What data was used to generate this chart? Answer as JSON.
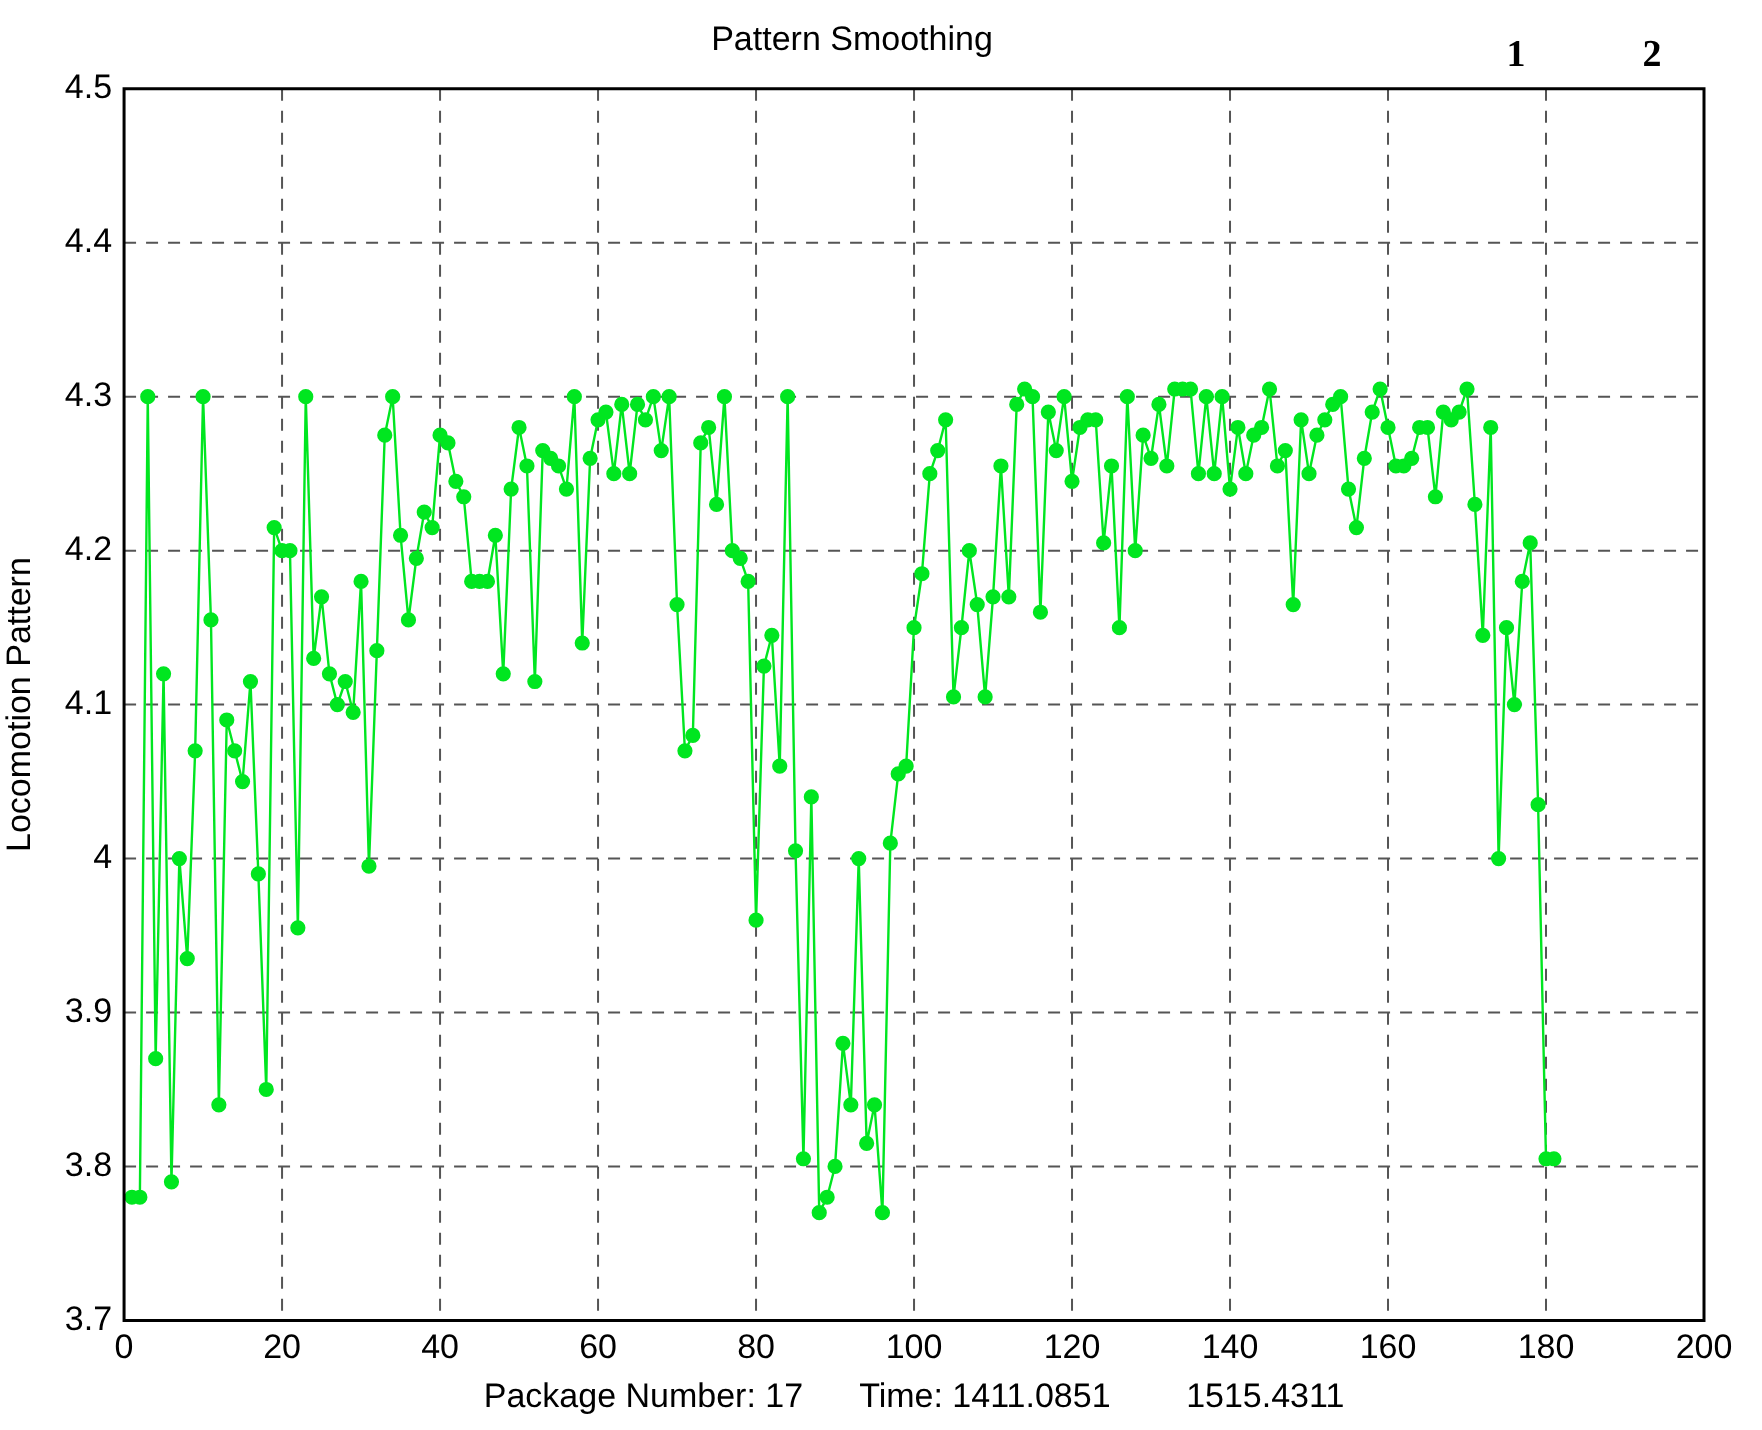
{
  "chart_data": {
    "type": "line",
    "title": "Pattern Smoothing",
    "xlabel": "Package Number: 17      Time: 1411.0851        1515.4311",
    "ylabel": "Locomotion Pattern",
    "annotations": [
      "1",
      "2"
    ],
    "x": [
      1,
      2,
      3,
      4,
      5,
      6,
      7,
      8,
      9,
      10,
      11,
      12,
      13,
      14,
      15,
      16,
      17,
      18,
      19,
      20,
      21,
      22,
      23,
      24,
      25,
      26,
      27,
      28,
      29,
      30,
      31,
      32,
      33,
      34,
      35,
      36,
      37,
      38,
      39,
      40,
      41,
      42,
      43,
      44,
      45,
      46,
      47,
      48,
      49,
      50,
      51,
      52,
      53,
      54,
      55,
      56,
      57,
      58,
      59,
      60,
      61,
      62,
      63,
      64,
      65,
      66,
      67,
      68,
      69,
      70,
      71,
      72,
      73,
      74,
      75,
      76,
      77,
      78,
      79,
      80,
      81,
      82,
      83,
      84,
      85,
      86,
      87,
      88,
      89,
      90,
      91,
      92,
      93,
      94,
      95,
      96,
      97,
      98,
      99,
      100,
      101,
      102,
      103,
      104,
      105,
      106,
      107,
      108,
      109,
      110,
      111,
      112,
      113,
      114,
      115,
      116,
      117,
      118,
      119,
      120,
      121,
      122,
      123,
      124,
      125,
      126,
      127,
      128,
      129,
      130,
      131,
      132,
      133,
      134,
      135,
      136,
      137,
      138,
      139,
      140,
      141,
      142,
      143,
      144,
      145,
      146,
      147,
      148,
      149,
      150,
      151,
      152,
      153,
      154,
      155,
      156,
      157,
      158,
      159,
      160,
      161,
      162,
      163,
      164,
      165,
      166,
      167,
      168,
      169,
      170,
      171,
      172,
      173,
      174,
      175,
      176,
      177,
      178,
      179,
      180,
      181
    ],
    "series": [
      {
        "color": "#00e620",
        "values": [
          3.78,
          3.78,
          4.3,
          3.87,
          4.12,
          3.79,
          4.0,
          3.935,
          4.07,
          4.3,
          4.155,
          3.84,
          4.09,
          4.07,
          4.05,
          4.115,
          3.99,
          3.85,
          4.215,
          4.2,
          4.2,
          3.955,
          4.3,
          4.13,
          4.17,
          4.12,
          4.1,
          4.115,
          4.095,
          4.18,
          3.995,
          4.135,
          4.275,
          4.3,
          4.21,
          4.155,
          4.195,
          4.225,
          4.215,
          4.275,
          4.27,
          4.245,
          4.235,
          4.18,
          4.18,
          4.18,
          4.21,
          4.12,
          4.24,
          4.28,
          4.255,
          4.115,
          4.265,
          4.26,
          4.255,
          4.24,
          4.3,
          4.14,
          4.26,
          4.285,
          4.29,
          4.25,
          4.295,
          4.25,
          4.295,
          4.285,
          4.3,
          4.265,
          4.3,
          4.165,
          4.07,
          4.08,
          4.27,
          4.28,
          4.23,
          4.3,
          4.2,
          4.195,
          4.18,
          3.96,
          4.125,
          4.145,
          4.06,
          4.3,
          4.005,
          3.805,
          4.04,
          3.77,
          3.78,
          3.8,
          3.88,
          3.84,
          4.0,
          3.815,
          3.84,
          3.77,
          4.01,
          4.055,
          4.06,
          4.15,
          4.185,
          4.25,
          4.265,
          4.285,
          4.105,
          4.15,
          4.2,
          4.165,
          4.105,
          4.17,
          4.255,
          4.17,
          4.295,
          4.305,
          4.3,
          4.16,
          4.29,
          4.265,
          4.3,
          4.245,
          4.28,
          4.285,
          4.285,
          4.205,
          4.255,
          4.15,
          4.3,
          4.2,
          4.275,
          4.26,
          4.295,
          4.255,
          4.305,
          4.305,
          4.305,
          4.25,
          4.3,
          4.25,
          4.3,
          4.24,
          4.28,
          4.25,
          4.275,
          4.28,
          4.305,
          4.255,
          4.265,
          4.165,
          4.285,
          4.25,
          4.275,
          4.285,
          4.295,
          4.3,
          4.24,
          4.215,
          4.26,
          4.29,
          4.305,
          4.28,
          4.255,
          4.255,
          4.26,
          4.28,
          4.28,
          4.235,
          4.29,
          4.285,
          4.29,
          4.305,
          4.23,
          4.145,
          4.28,
          4.0,
          4.15,
          4.1,
          4.18,
          4.205,
          4.035,
          3.805,
          3.805
        ]
      }
    ],
    "xlim": [
      0,
      200
    ],
    "xticks": [
      0,
      20,
      40,
      60,
      80,
      100,
      120,
      140,
      160,
      180,
      200
    ],
    "ylim": [
      3.7,
      4.5
    ],
    "yticks": [
      3.7,
      3.8,
      3.9,
      4,
      4.1,
      4.2,
      4.3,
      4.4,
      4.5
    ],
    "grid": true,
    "legend": false,
    "marker": "circle",
    "line_style": "solid"
  }
}
